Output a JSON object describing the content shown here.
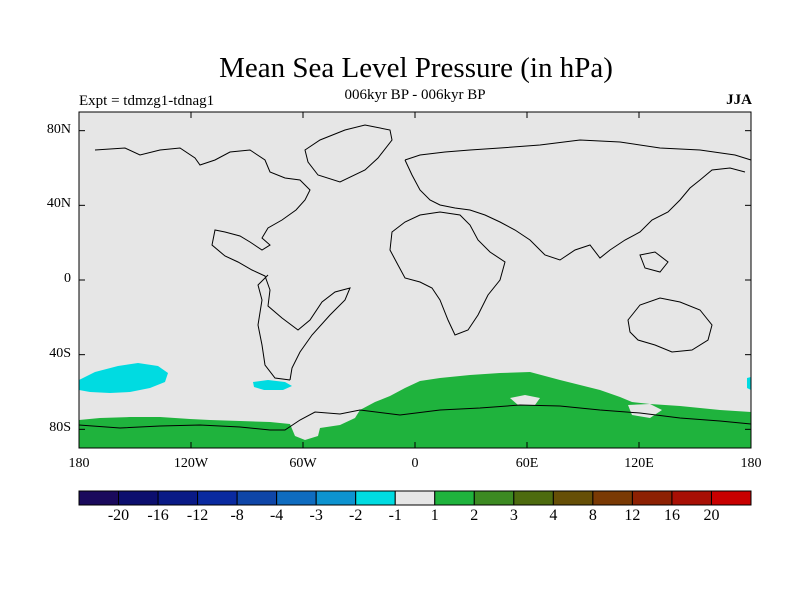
{
  "title": "Mean Sea Level Pressure (in hPa)",
  "subtitle": "006kyr BP - 006kyr BP",
  "left_label": "Expt = tdmzg1-tdnag1",
  "right_label": "JJA",
  "colors": {
    "background": "#e6e6e6",
    "coast": "#000000",
    "positive_1_2": "#1fb33d",
    "negative_1_2": "#00dbe1"
  },
  "axes": {
    "lon_ticks": [
      "180",
      "120W",
      "60W",
      "0",
      "60E",
      "120E",
      "180"
    ],
    "lon_values": [
      -180,
      -120,
      -60,
      0,
      60,
      120,
      180
    ],
    "lat_ticks": [
      "80N",
      "40N",
      "0",
      "40S",
      "80S"
    ],
    "lat_values": [
      80,
      40,
      0,
      -40,
      -80
    ],
    "lat_range": [
      -90,
      90
    ],
    "lon_range": [
      -180,
      180
    ]
  },
  "colorbar": {
    "colors": [
      "#1a0a5c",
      "#0c0f6e",
      "#0a1a86",
      "#0a2aa0",
      "#0f46a8",
      "#0f6cc0",
      "#0d93d0",
      "#00dbe1",
      "#e6e6e6",
      "#1fb33d",
      "#3c8a22",
      "#4d6b0f",
      "#664f06",
      "#7a3a04",
      "#8d2103",
      "#a81005",
      "#c80000"
    ],
    "labels": [
      "-20",
      "-16",
      "-12",
      "-8",
      "-4",
      "-3",
      "-2",
      "-1",
      "1",
      "2",
      "3",
      "4",
      "8",
      "12",
      "16",
      "20"
    ]
  }
}
